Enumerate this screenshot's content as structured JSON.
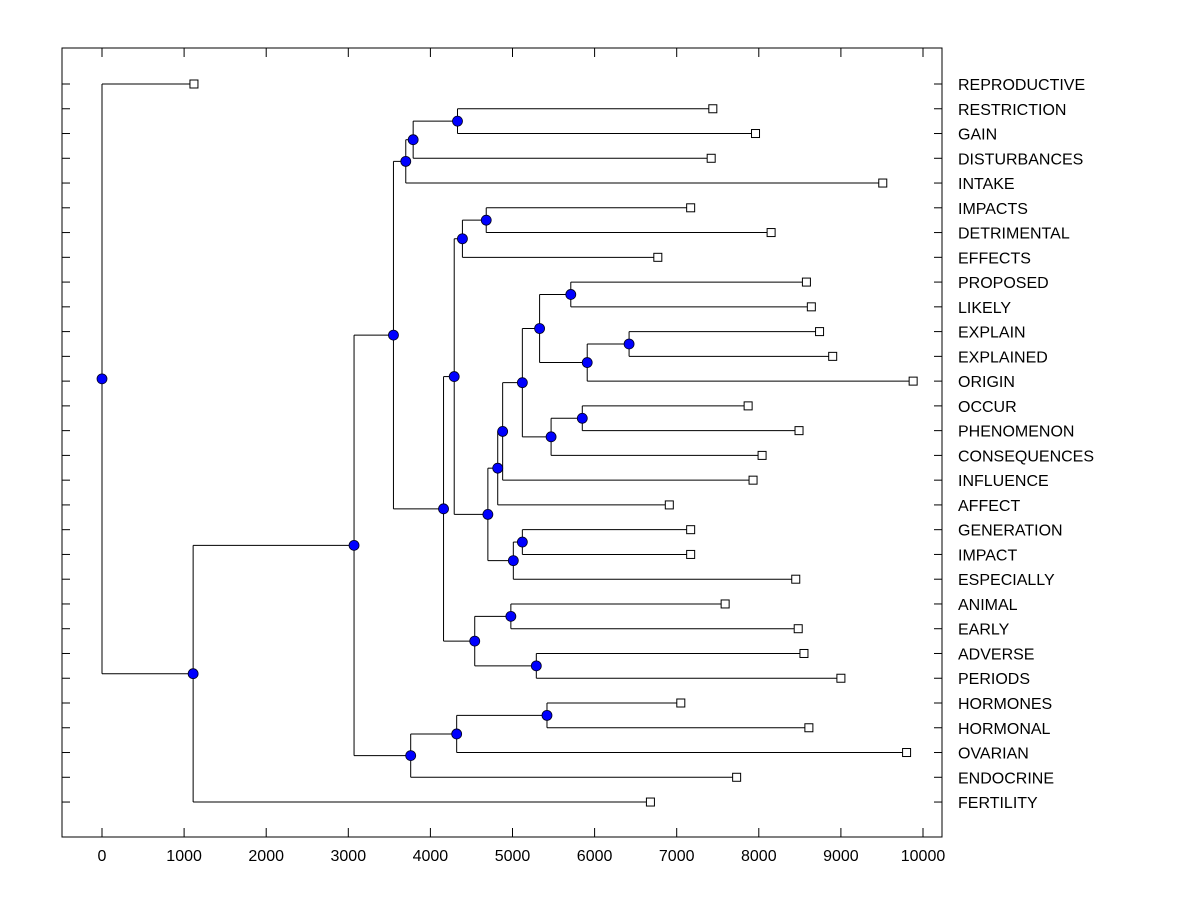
{
  "chart_data": {
    "type": "dendrogram",
    "title": "",
    "xlabel": "",
    "ylabel": "",
    "xlim": [
      -500,
      10250
    ],
    "x_ticks": [
      0,
      1000,
      2000,
      3000,
      4000,
      5000,
      6000,
      7000,
      8000,
      9000,
      10000
    ],
    "x_tick_labels": [
      "0",
      "1000",
      "2000",
      "3000",
      "4000",
      "5000",
      "6000",
      "7000",
      "8000",
      "9000",
      "10000"
    ],
    "grid": false,
    "colors": {
      "node": "#0000ff",
      "line": "#000000",
      "leaf": "#ffffff"
    },
    "leaves": [
      {
        "label": "REPRODUCTIVE",
        "x": 1120
      },
      {
        "label": "RESTRICTION",
        "x": 7440
      },
      {
        "label": "GAIN",
        "x": 7960
      },
      {
        "label": "DISTURBANCES",
        "x": 7420
      },
      {
        "label": "INTAKE",
        "x": 9510
      },
      {
        "label": "IMPACTS",
        "x": 7170
      },
      {
        "label": "DETRIMENTAL",
        "x": 8150
      },
      {
        "label": "EFFECTS",
        "x": 6770
      },
      {
        "label": "PROPOSED",
        "x": 8580
      },
      {
        "label": "LIKELY",
        "x": 8640
      },
      {
        "label": "EXPLAIN",
        "x": 8740
      },
      {
        "label": "EXPLAINED",
        "x": 8900
      },
      {
        "label": "ORIGIN",
        "x": 9880
      },
      {
        "label": "OCCUR",
        "x": 7870
      },
      {
        "label": "PHENOMENON",
        "x": 8490
      },
      {
        "label": "CONSEQUENCES",
        "x": 8040
      },
      {
        "label": "INFLUENCE",
        "x": 7930
      },
      {
        "label": "AFFECT",
        "x": 6910
      },
      {
        "label": "GENERATION",
        "x": 7170
      },
      {
        "label": "IMPACT",
        "x": 7170
      },
      {
        "label": "ESPECIALLY",
        "x": 8450
      },
      {
        "label": "ANIMAL",
        "x": 7590
      },
      {
        "label": "EARLY",
        "x": 8480
      },
      {
        "label": "ADVERSE",
        "x": 8550
      },
      {
        "label": "PERIODS",
        "x": 9000
      },
      {
        "label": "HORMONES",
        "x": 7050
      },
      {
        "label": "HORMONAL",
        "x": 8610
      },
      {
        "label": "OVARIAN",
        "x": 9800
      },
      {
        "label": "ENDOCRINE",
        "x": 7730
      },
      {
        "label": "FERTILITY",
        "x": 6680
      }
    ],
    "nodes": {
      "root": {
        "x": 0,
        "children": [
          "L0",
          "A"
        ]
      },
      "A": {
        "x": 1110,
        "children": [
          "B",
          "L29"
        ]
      },
      "B": {
        "x": 3070,
        "children": [
          "C",
          "H"
        ]
      },
      "C": {
        "x": 3550,
        "children": [
          "D",
          "E"
        ]
      },
      "D": {
        "x": 3700,
        "children": [
          "D1",
          "L4"
        ]
      },
      "D1": {
        "x": 3790,
        "children": [
          "D2",
          "L3"
        ]
      },
      "D2": {
        "x": 4330,
        "children": [
          "L1",
          "L2"
        ]
      },
      "E": {
        "x": 4160,
        "children": [
          "F",
          "G"
        ]
      },
      "F": {
        "x": 4290,
        "children": [
          "F1",
          "F2"
        ]
      },
      "F1": {
        "x": 4390,
        "children": [
          "F1a",
          "L7"
        ]
      },
      "F1a": {
        "x": 4680,
        "children": [
          "L5",
          "L6"
        ]
      },
      "F2": {
        "x": 4700,
        "children": [
          "F3",
          "F4"
        ]
      },
      "F3": {
        "x": 4820,
        "children": [
          "F5",
          "L17"
        ]
      },
      "F5": {
        "x": 4880,
        "children": [
          "F6",
          "L16"
        ]
      },
      "F6": {
        "x": 5120,
        "children": [
          "F7",
          "F8"
        ]
      },
      "F7": {
        "x": 5330,
        "children": [
          "F7a",
          "F7b"
        ]
      },
      "F7a": {
        "x": 5710,
        "children": [
          "L8",
          "L9"
        ]
      },
      "F7b": {
        "x": 5910,
        "children": [
          "F7c",
          "L12"
        ]
      },
      "F7c": {
        "x": 6420,
        "children": [
          "L10",
          "L11"
        ]
      },
      "F8": {
        "x": 5470,
        "children": [
          "F8a",
          "L15"
        ]
      },
      "F8a": {
        "x": 5850,
        "children": [
          "L13",
          "L14"
        ]
      },
      "F4": {
        "x": 5010,
        "children": [
          "F4a",
          "L20"
        ]
      },
      "F4a": {
        "x": 5120,
        "children": [
          "L18",
          "L19"
        ]
      },
      "G": {
        "x": 4540,
        "children": [
          "G1",
          "G2"
        ]
      },
      "G1": {
        "x": 4980,
        "children": [
          "L21",
          "L22"
        ]
      },
      "G2": {
        "x": 5290,
        "children": [
          "L23",
          "L24"
        ]
      },
      "H": {
        "x": 3760,
        "children": [
          "H1",
          "L28"
        ]
      },
      "H1": {
        "x": 4320,
        "children": [
          "H2",
          "L27"
        ]
      },
      "H2": {
        "x": 5420,
        "children": [
          "L25",
          "L26"
        ]
      }
    }
  }
}
